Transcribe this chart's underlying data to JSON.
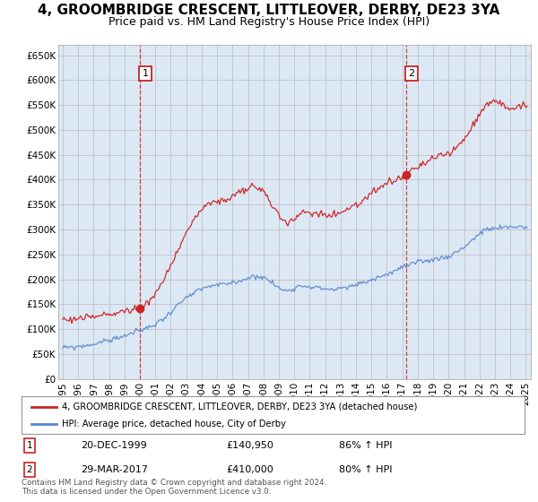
{
  "title": "4, GROOMBRIDGE CRESCENT, LITTLEOVER, DERBY, DE23 3YA",
  "subtitle": "Price paid vs. HM Land Registry's House Price Index (HPI)",
  "ylim": [
    0,
    670000
  ],
  "yticks": [
    0,
    50000,
    100000,
    150000,
    200000,
    250000,
    300000,
    350000,
    400000,
    450000,
    500000,
    550000,
    600000,
    650000
  ],
  "ytick_labels": [
    "£0",
    "£50K",
    "£100K",
    "£150K",
    "£200K",
    "£250K",
    "£300K",
    "£350K",
    "£400K",
    "£450K",
    "£500K",
    "£550K",
    "£600K",
    "£650K"
  ],
  "xlim_start": 1994.7,
  "xlim_end": 2025.3,
  "xtick_positions": [
    1995,
    1996,
    1997,
    1998,
    1999,
    2000,
    2001,
    2002,
    2003,
    2004,
    2005,
    2006,
    2007,
    2008,
    2009,
    2010,
    2011,
    2012,
    2013,
    2014,
    2015,
    2016,
    2017,
    2018,
    2019,
    2020,
    2021,
    2022,
    2023,
    2024,
    2025
  ],
  "xtick_labels": [
    "1995",
    "1996",
    "1997",
    "1998",
    "1999",
    "2000",
    "2001",
    "2002",
    "2003",
    "2004",
    "2005",
    "2006",
    "2007",
    "2008",
    "2009",
    "2010",
    "2011",
    "2012",
    "2013",
    "2014",
    "2015",
    "2016",
    "2017",
    "2018",
    "2019",
    "2020",
    "2021",
    "2022",
    "2023",
    "2024",
    "2025"
  ],
  "hpi_color": "#5588cc",
  "price_color": "#cc2222",
  "plot_bg_color": "#dde8f5",
  "sale1_x": 2000.0,
  "sale1_y": 140950,
  "sale1_label": "1",
  "sale2_x": 2017.25,
  "sale2_y": 410000,
  "sale2_label": "2",
  "vline1_x": 2000.0,
  "vline2_x": 2017.25,
  "legend_line1": "4, GROOMBRIDGE CRESCENT, LITTLEOVER, DERBY, DE23 3YA (detached house)",
  "legend_line2": "HPI: Average price, detached house, City of Derby",
  "annotation1_box_label": "1",
  "annotation1_date": "20-DEC-1999",
  "annotation1_price": "£140,950",
  "annotation1_hpi": "86% ↑ HPI",
  "annotation2_box_label": "2",
  "annotation2_date": "29-MAR-2017",
  "annotation2_price": "£410,000",
  "annotation2_hpi": "80% ↑ HPI",
  "footer": "Contains HM Land Registry data © Crown copyright and database right 2024.\nThis data is licensed under the Open Government Licence v3.0.",
  "background_color": "#ffffff",
  "grid_color": "#bbbbbb",
  "title_fontsize": 11,
  "subtitle_fontsize": 9,
  "axis_fontsize": 7.5
}
